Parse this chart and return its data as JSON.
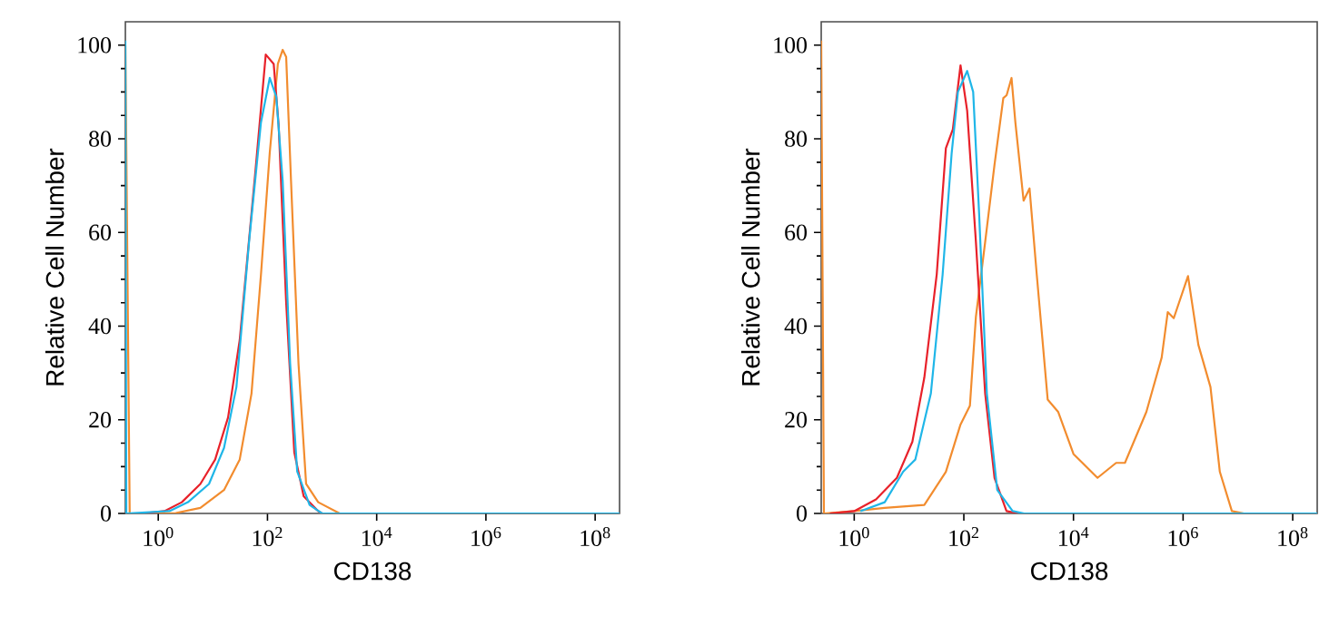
{
  "chart_data": [
    {
      "type": "line",
      "xlabel": "CD138",
      "ylabel": "Relative Cell Number",
      "log": "x",
      "grid": false,
      "marker": "none",
      "line_style": "solid",
      "xlim": [
        0.25,
        280000000.0
      ],
      "ylim": [
        0,
        105
      ],
      "xticks": [
        {
          "value": 1,
          "label": "10$^{0}$"
        },
        {
          "value": 100,
          "label": "10$^{2}$"
        },
        {
          "value": 10000,
          "label": "10$^{4}$"
        },
        {
          "value": 1000000,
          "label": "10$^{6}$"
        },
        {
          "value": 100000000,
          "label": "10$^{8}$"
        }
      ],
      "yticks": [
        0,
        20,
        40,
        60,
        80,
        100
      ],
      "series": [
        {
          "color": "#f28c2e",
          "x": [
            0.25,
            0.3,
            2.1,
            5.9,
            16,
            31,
            51,
            76,
            110,
            155,
            190,
            220,
            270,
            370,
            510,
            850,
            2100,
            280000000.0
          ],
          "values": [
            100,
            0,
            0.1,
            1.2,
            5,
            11.5,
            25.6,
            51,
            77,
            96,
            99,
            97.5,
            71,
            32,
            6.3,
            2.4,
            0,
            0
          ]
        },
        {
          "color": "#e8212a",
          "x": [
            0.5,
            1.3,
            2.7,
            5.9,
            11,
            19,
            31,
            59,
            93,
            130,
            160,
            220,
            310,
            460,
            850,
            1000,
            280000000.0
          ],
          "values": [
            0,
            0.5,
            2.4,
            6.3,
            11.5,
            20.5,
            37,
            72,
            98,
            96,
            83,
            45,
            13,
            3.7,
            0.5,
            0,
            0
          ]
        },
        {
          "color": "#1fb6e8",
          "x": [
            0.25,
            0.26,
            1.6,
            3.5,
            8.5,
            16,
            27,
            46,
            76,
            110,
            145,
            190,
            260,
            350,
            590,
            1000,
            280000000.0
          ],
          "values": [
            101,
            0,
            0.5,
            2.4,
            6.3,
            14,
            27,
            58,
            83.5,
            93,
            89,
            71,
            32,
            9,
            1.8,
            0,
            0
          ]
        }
      ]
    },
    {
      "type": "line",
      "xlabel": "CD138",
      "ylabel": "Relative Cell Number",
      "log": "x",
      "grid": false,
      "marker": "none",
      "line_style": "solid",
      "xlim": [
        0.25,
        280000000.0
      ],
      "ylim": [
        0,
        105
      ],
      "xticks": [
        {
          "value": 1,
          "label": "10$^{0}$"
        },
        {
          "value": 100,
          "label": "10$^{2}$"
        },
        {
          "value": 10000,
          "label": "10$^{4}$"
        },
        {
          "value": 1000000,
          "label": "10$^{6}$"
        },
        {
          "value": 100000000,
          "label": "10$^{8}$"
        }
      ],
      "yticks": [
        0,
        20,
        40,
        60,
        80,
        100
      ],
      "series": [
        {
          "color": "#f28c2e",
          "x": [
            0.25,
            0.28,
            1,
            3.6,
            19,
            47,
            87,
            129,
            166,
            245,
            363,
            525,
            603,
            741,
            871,
            1230,
            1580,
            2140,
            3390,
            5250,
            10000,
            27500,
            60000,
            87000,
            214000,
            407000,
            525000,
            676000,
            1230000,
            1900000,
            3160000,
            4680000,
            7760000,
            12900000,
            280000000.0
          ],
          "values": [
            101,
            0,
            0.5,
            1.2,
            1.8,
            8.9,
            19,
            23,
            42,
            58,
            74.5,
            88.7,
            89.3,
            93,
            83.5,
            66.8,
            69.4,
            51,
            24.3,
            21.7,
            12.7,
            7.6,
            10.8,
            10.8,
            21.7,
            33.3,
            43,
            41.7,
            50.7,
            36,
            27,
            8.9,
            0.5,
            0,
            0
          ]
        },
        {
          "color": "#e8212a",
          "x": [
            0.36,
            1,
            2.5,
            6,
            11.5,
            19,
            32,
            47,
            63,
            87,
            115,
            166,
            245,
            363,
            600,
            1000,
            280000000.0
          ],
          "values": [
            0,
            0.5,
            3,
            7.6,
            15.3,
            29,
            51,
            78,
            82,
            95.7,
            86,
            58,
            25.6,
            7.6,
            0.5,
            0,
            0
          ]
        },
        {
          "color": "#1fb6e8",
          "x": [
            1.3,
            3.6,
            7.8,
            13,
            25,
            41,
            60,
            78,
            115,
            148,
            190,
            263,
            407,
            776,
            1260,
            280000000.0
          ],
          "values": [
            0.5,
            2.4,
            8.9,
            11.5,
            25.6,
            51,
            77,
            90,
            94.5,
            90,
            64,
            25.6,
            5,
            0.5,
            0,
            0
          ]
        }
      ]
    }
  ]
}
